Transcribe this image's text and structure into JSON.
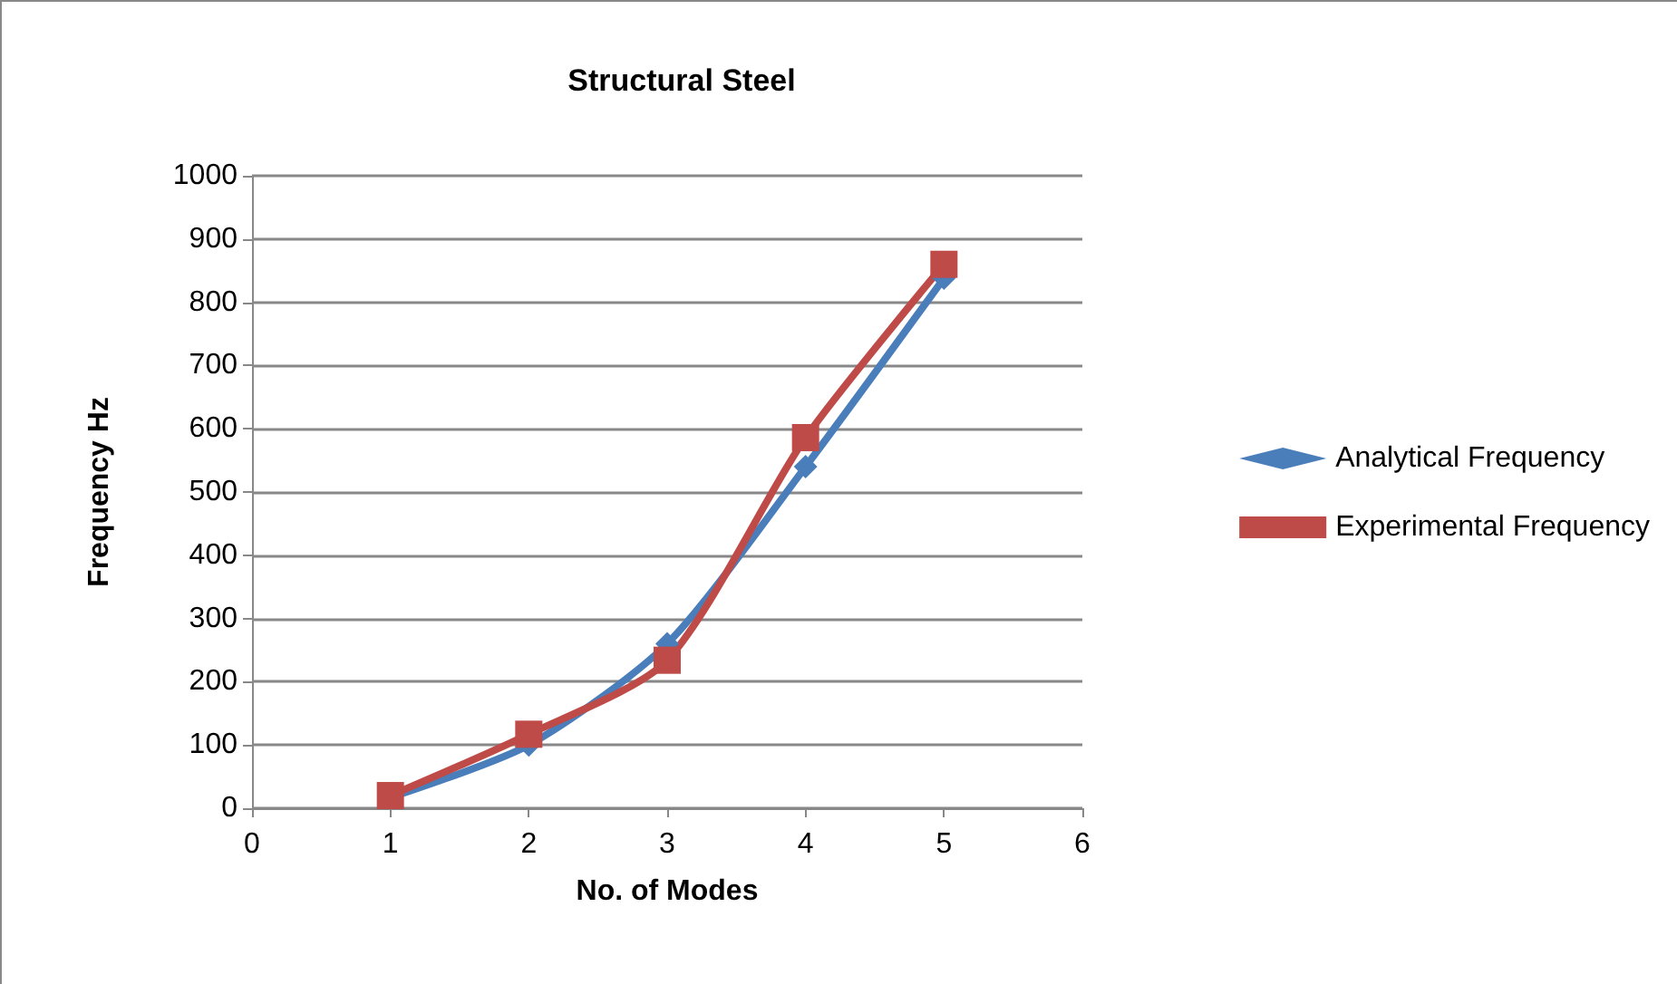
{
  "chart_data": {
    "type": "line",
    "title": "Structural Steel",
    "xlabel": "No. of Modes",
    "ylabel": "Frequency Hz",
    "x": [
      1,
      2,
      3,
      4,
      5
    ],
    "series": [
      {
        "name": "Analytical Frequency",
        "color": "#4a7ebb",
        "marker": "diamond",
        "values": [
          17,
          100,
          260,
          540,
          838
        ]
      },
      {
        "name": "Experimental Frequency",
        "color": "#be4b48",
        "marker": "square",
        "values": [
          20,
          117,
          234,
          586,
          860
        ]
      }
    ],
    "xlim": [
      0,
      6
    ],
    "xticks": [
      0,
      1,
      2,
      3,
      4,
      5,
      6
    ],
    "ylim": [
      0,
      1000
    ],
    "yticks": [
      0,
      100,
      200,
      300,
      400,
      500,
      600,
      700,
      800,
      900,
      1000
    ],
    "grid": "y",
    "legend": "right",
    "line_style": "solid"
  }
}
